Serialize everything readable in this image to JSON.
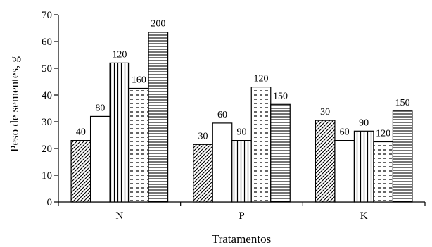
{
  "chart_data": {
    "type": "bar",
    "xlabel": "Tratamentos",
    "ylabel": "Peso de sementes, g",
    "ylim": [
      0,
      70
    ],
    "yticks": [
      0,
      10,
      20,
      30,
      40,
      50,
      60,
      70
    ],
    "categories": [
      "N",
      "P",
      "K"
    ],
    "grid": false,
    "legend": "none",
    "series_fills": [
      "diagonal-hatch",
      "blank",
      "vertical-lines",
      "dashes",
      "horizontal-lines"
    ],
    "groups": [
      {
        "category": "N",
        "bars": [
          {
            "label": "40",
            "value": 23
          },
          {
            "label": "80",
            "value": 32
          },
          {
            "label": "120",
            "value": 52
          },
          {
            "label": "160",
            "value": 42.5
          },
          {
            "label": "200",
            "value": 63.5
          }
        ]
      },
      {
        "category": "P",
        "bars": [
          {
            "label": "30",
            "value": 21.5
          },
          {
            "label": "60",
            "value": 29.5
          },
          {
            "label": "90",
            "value": 23
          },
          {
            "label": "120",
            "value": 43
          },
          {
            "label": "150",
            "value": 36.5
          }
        ]
      },
      {
        "category": "K",
        "bars": [
          {
            "label": "30",
            "value": 30.5
          },
          {
            "label": "60",
            "value": 23
          },
          {
            "label": "90",
            "value": 26.5
          },
          {
            "label": "120",
            "value": 22.5
          },
          {
            "label": "150",
            "value": 34
          }
        ]
      }
    ]
  }
}
